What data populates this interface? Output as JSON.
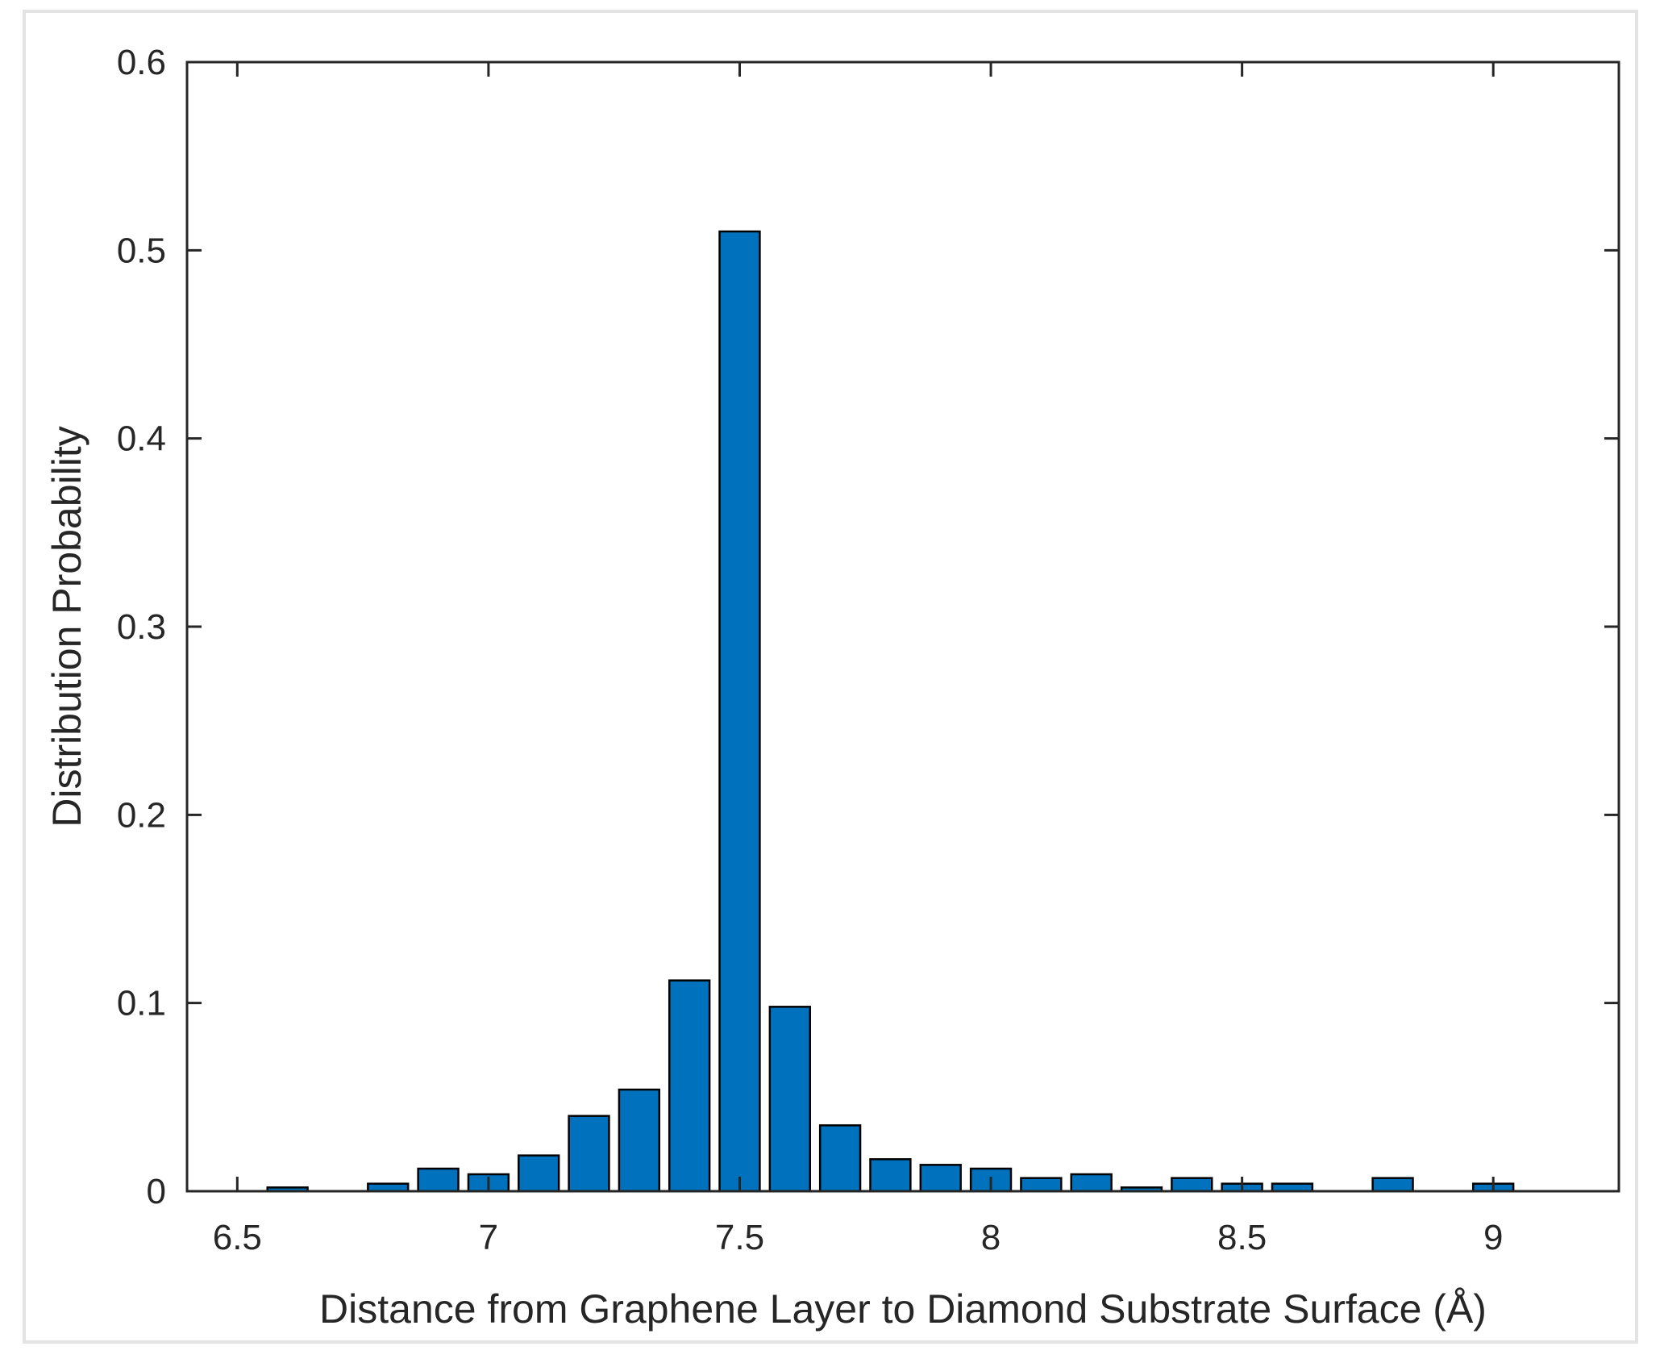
{
  "chart_data": {
    "type": "bar",
    "title": "",
    "xlabel": "Distance from Graphene Layer to Diamond Substrate Surface (Å)",
    "ylabel": "Distribution Probability",
    "xlim": [
      6.4,
      9.25
    ],
    "ylim": [
      0,
      0.6
    ],
    "xticks": [
      6.5,
      7,
      7.5,
      8,
      8.5,
      9
    ],
    "xtick_labels": [
      "6.5",
      "7",
      "7.5",
      "8",
      "8.5",
      "9"
    ],
    "yticks": [
      0,
      0.1,
      0.2,
      0.3,
      0.4,
      0.5,
      0.6
    ],
    "ytick_labels": [
      "0",
      "0.1",
      "0.2",
      "0.3",
      "0.4",
      "0.5",
      "0.6"
    ],
    "bar_width": 0.08,
    "grid": false,
    "legend": "none",
    "bar_color": "#0072bd",
    "bars": [
      {
        "x": 6.6,
        "value": 0.002
      },
      {
        "x": 6.8,
        "value": 0.004
      },
      {
        "x": 6.9,
        "value": 0.012
      },
      {
        "x": 7.0,
        "value": 0.009
      },
      {
        "x": 7.1,
        "value": 0.019
      },
      {
        "x": 7.2,
        "value": 0.04
      },
      {
        "x": 7.3,
        "value": 0.054
      },
      {
        "x": 7.4,
        "value": 0.112
      },
      {
        "x": 7.5,
        "value": 0.51
      },
      {
        "x": 7.6,
        "value": 0.098
      },
      {
        "x": 7.7,
        "value": 0.035
      },
      {
        "x": 7.8,
        "value": 0.017
      },
      {
        "x": 7.9,
        "value": 0.014
      },
      {
        "x": 8.0,
        "value": 0.012
      },
      {
        "x": 8.1,
        "value": 0.007
      },
      {
        "x": 8.2,
        "value": 0.009
      },
      {
        "x": 8.3,
        "value": 0.002
      },
      {
        "x": 8.4,
        "value": 0.007
      },
      {
        "x": 8.5,
        "value": 0.004
      },
      {
        "x": 8.6,
        "value": 0.004
      },
      {
        "x": 8.8,
        "value": 0.007
      },
      {
        "x": 9.0,
        "value": 0.004
      }
    ]
  }
}
